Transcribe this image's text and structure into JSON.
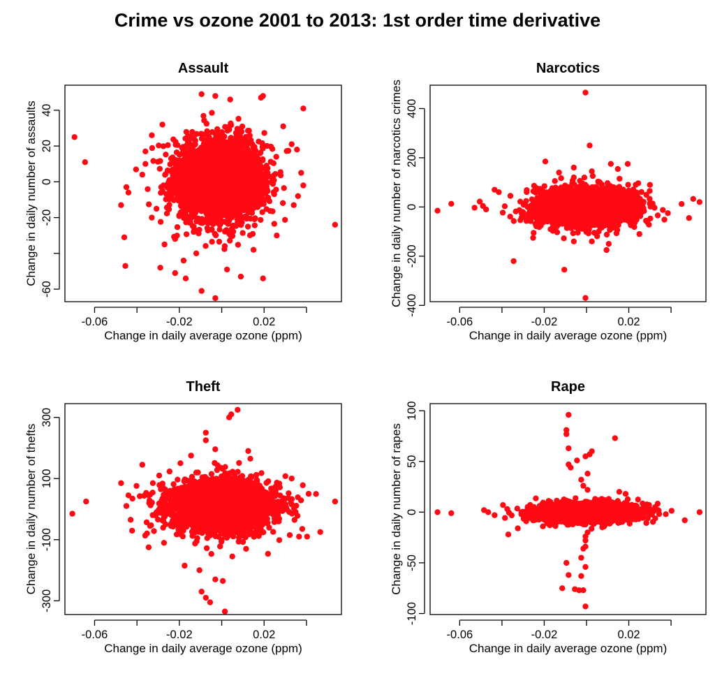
{
  "figure": {
    "title": "Crime vs ozone 2001 to 2013: 1st order time derivative",
    "point_color": "#ff0a14"
  },
  "chart_data": [
    {
      "type": "scatter",
      "title": "Assault",
      "xlabel": "Change in daily average ozone (ppm)",
      "ylabel": "Change in daily number of assaults",
      "xlim": [
        -0.074,
        0.0565
      ],
      "ylim": [
        -67,
        54
      ],
      "xticks": [
        -0.06,
        -0.04,
        -0.02,
        0,
        0.02,
        0.04
      ],
      "xtick_labels": [
        "-0.06",
        "",
        "-0.02",
        "",
        "0.02",
        ""
      ],
      "yticks": [
        -60,
        -40,
        -20,
        0,
        20,
        40
      ],
      "ytick_labels": [
        "-60",
        "",
        "-20",
        "0",
        "20",
        "40"
      ],
      "cloud": {
        "cx": -0.0015,
        "cy": 1,
        "sx": 0.0105,
        "sy": 11.5,
        "n": 2600
      },
      "points": [
        [
          -0.0695,
          25
        ],
        [
          -0.0645,
          11
        ],
        [
          -0.0475,
          -13
        ],
        [
          -0.046,
          -31
        ],
        [
          -0.0455,
          -47
        ],
        [
          -0.044,
          -6
        ],
        [
          -0.045,
          -3
        ],
        [
          -0.029,
          -48
        ],
        [
          -0.022,
          -51
        ],
        [
          -0.017,
          -54
        ],
        [
          -0.0095,
          -61
        ],
        [
          -0.003,
          -65
        ],
        [
          0.009,
          -53
        ],
        [
          0.0195,
          -54
        ],
        [
          0.0535,
          -24
        ],
        [
          0.0385,
          -2
        ],
        [
          0.0385,
          41
        ],
        [
          0.0195,
          48
        ],
        [
          0.0185,
          47
        ],
        [
          -0.0095,
          49
        ],
        [
          -0.003,
          48
        ],
        [
          0.004,
          46
        ],
        [
          -0.028,
          32
        ],
        [
          -0.033,
          26
        ],
        [
          -0.036,
          17
        ],
        [
          0.033,
          21
        ],
        [
          0.0355,
          18
        ],
        [
          -0.0375,
          4
        ],
        [
          0.0375,
          5
        ],
        [
          0.034,
          -13
        ],
        [
          -0.033,
          -20
        ],
        [
          -0.012,
          -40
        ],
        [
          0.0025,
          -49
        ],
        [
          -0.018,
          -44
        ],
        [
          0.015,
          -38
        ],
        [
          -0.027,
          -35
        ],
        [
          0.029,
          31
        ],
        [
          0.026,
          -30
        ],
        [
          -0.036,
          10
        ],
        [
          0.036,
          -8
        ]
      ]
    },
    {
      "type": "scatter",
      "title": "Narcotics",
      "xlabel": "Change in daily average ozone (ppm)",
      "ylabel": "Change in daily number of narcotics crimes",
      "xlim": [
        -0.074,
        0.0565
      ],
      "ylim": [
        -385,
        495
      ],
      "xticks": [
        -0.06,
        -0.04,
        -0.02,
        0,
        0.02,
        0.04
      ],
      "xtick_labels": [
        "-0.06",
        "",
        "-0.02",
        "",
        "0.02",
        ""
      ],
      "yticks": [
        -400,
        -200,
        0,
        200,
        400
      ],
      "ytick_labels": [
        "-400",
        "-200",
        "0",
        "200",
        "400"
      ],
      "cloud": {
        "cx": 0.0,
        "cy": 0,
        "sx": 0.0115,
        "sy": 37,
        "n": 2600
      },
      "points": [
        [
          -0.0705,
          -15
        ],
        [
          -0.064,
          13
        ],
        [
          -0.053,
          -3
        ],
        [
          -0.0505,
          22
        ],
        [
          -0.049,
          4
        ],
        [
          -0.0475,
          -10
        ],
        [
          -0.0435,
          70
        ],
        [
          -0.0415,
          60
        ],
        [
          -0.0345,
          -220
        ],
        [
          -0.0105,
          -255
        ],
        [
          -0.0005,
          465
        ],
        [
          -0.0005,
          -370
        ],
        [
          0.0015,
          250
        ],
        [
          -0.0195,
          185
        ],
        [
          -0.006,
          120
        ],
        [
          0.0025,
          145
        ],
        [
          0.0115,
          175
        ],
        [
          0.0195,
          175
        ],
        [
          -0.006,
          160
        ],
        [
          0.0025,
          -140
        ],
        [
          -0.006,
          -140
        ],
        [
          0.0095,
          -175
        ],
        [
          0.0535,
          20
        ],
        [
          0.0505,
          33
        ],
        [
          0.0485,
          -45
        ],
        [
          0.0385,
          -25
        ],
        [
          0.045,
          12
        ],
        [
          -0.036,
          45
        ],
        [
          0.03,
          90
        ],
        [
          0.025,
          -110
        ],
        [
          -0.025,
          -105
        ],
        [
          -0.013,
          140
        ],
        [
          0.0105,
          -150
        ]
      ]
    },
    {
      "type": "scatter",
      "title": "Theft",
      "xlabel": "Change in daily average ozone (ppm)",
      "ylabel": "Change in daily number of thefts",
      "xlim": [
        -0.074,
        0.0565
      ],
      "ylim": [
        -345,
        345
      ],
      "xticks": [
        -0.06,
        -0.04,
        -0.02,
        0,
        0.02,
        0.04
      ],
      "xtick_labels": [
        "-0.06",
        "",
        "-0.02",
        "",
        "0.02",
        ""
      ],
      "yticks": [
        -300,
        -100,
        100,
        300
      ],
      "ytick_labels": [
        "-300",
        "-100",
        "100",
        "300"
      ],
      "cloud": {
        "cx": 0.0,
        "cy": 10,
        "sx": 0.0125,
        "sy": 42,
        "n": 2600
      },
      "points": [
        [
          -0.0705,
          -15
        ],
        [
          -0.064,
          25
        ],
        [
          -0.0475,
          85
        ],
        [
          -0.045,
          10
        ],
        [
          -0.044,
          45
        ],
        [
          -0.043,
          -35
        ],
        [
          -0.0375,
          145
        ],
        [
          -0.0345,
          -125
        ],
        [
          -0.0325,
          85
        ],
        [
          -0.0195,
          150
        ],
        [
          -0.0145,
          175
        ],
        [
          -0.0075,
          250
        ],
        [
          -0.0075,
          225
        ],
        [
          0.0035,
          300
        ],
        [
          0.0045,
          310
        ],
        [
          0.0075,
          325
        ],
        [
          0.0125,
          190
        ],
        [
          0.0135,
          165
        ],
        [
          -0.0175,
          -185
        ],
        [
          -0.0095,
          -270
        ],
        [
          -0.0075,
          -290
        ],
        [
          -0.0055,
          -305
        ],
        [
          -0.003,
          -230
        ],
        [
          0.0005,
          -235
        ],
        [
          0.0015,
          -335
        ],
        [
          -0.0105,
          -200
        ],
        [
          0.005,
          -155
        ],
        [
          0.0115,
          -130
        ],
        [
          0.0535,
          25
        ],
        [
          0.0465,
          -75
        ],
        [
          0.038,
          -65
        ],
        [
          0.0365,
          -90
        ],
        [
          0.041,
          50
        ],
        [
          0.033,
          100
        ],
        [
          -0.0295,
          110
        ]
      ]
    },
    {
      "type": "scatter",
      "title": "Rape",
      "xlabel": "Change in daily average ozone (ppm)",
      "ylabel": "Change in daily number of rapes",
      "xlim": [
        -0.074,
        0.0565
      ],
      "ylim": [
        -101,
        107
      ],
      "xticks": [
        -0.06,
        -0.04,
        -0.02,
        0,
        0.02,
        0.04
      ],
      "xtick_labels": [
        "-0.06",
        "",
        "-0.02",
        "",
        "0.02",
        ""
      ],
      "yticks": [
        -100,
        -50,
        0,
        50,
        100
      ],
      "ytick_labels": [
        "-100",
        "-50",
        "0",
        "50",
        "100"
      ],
      "cloud": {
        "cx": 0.0,
        "cy": 0,
        "sx": 0.0115,
        "sy": 4.5,
        "n": 2600
      },
      "points": [
        [
          -0.0705,
          0
        ],
        [
          -0.064,
          -1
        ],
        [
          -0.0485,
          2
        ],
        [
          -0.0465,
          0
        ],
        [
          -0.0435,
          -3
        ],
        [
          -0.0395,
          7
        ],
        [
          -0.0375,
          3
        ],
        [
          -0.037,
          -22
        ],
        [
          -0.0325,
          -16
        ],
        [
          -0.0085,
          96
        ],
        [
          -0.0095,
          81
        ],
        [
          -0.0095,
          77
        ],
        [
          -0.0085,
          63
        ],
        [
          -0.0045,
          51
        ],
        [
          -0.0005,
          55
        ],
        [
          0.0015,
          57
        ],
        [
          0.0025,
          60
        ],
        [
          0.0135,
          73
        ],
        [
          -0.0085,
          47
        ],
        [
          -0.0075,
          44
        ],
        [
          0.0005,
          38
        ],
        [
          -0.0025,
          32
        ],
        [
          -0.0015,
          26
        ],
        [
          0.0005,
          22
        ],
        [
          -0.0005,
          -24
        ],
        [
          -0.0005,
          -28
        ],
        [
          -0.0005,
          -34
        ],
        [
          -0.0015,
          -36
        ],
        [
          -0.0025,
          -45
        ],
        [
          -0.0095,
          -50
        ],
        [
          -0.0005,
          -54
        ],
        [
          -0.0085,
          -62
        ],
        [
          -0.0025,
          -63
        ],
        [
          -0.0115,
          -75
        ],
        [
          -0.0055,
          -76
        ],
        [
          -0.0035,
          -77
        ],
        [
          -0.0015,
          -77
        ],
        [
          -0.0005,
          -93
        ],
        [
          0.0005,
          -20
        ],
        [
          -0.0015,
          -12
        ],
        [
          0.0085,
          12
        ],
        [
          0.0155,
          20
        ],
        [
          0.0185,
          18
        ],
        [
          0.0535,
          0
        ],
        [
          0.0465,
          -8
        ],
        [
          0.0375,
          -2
        ],
        [
          0.029,
          -6
        ],
        [
          0.0325,
          5
        ],
        [
          0.033,
          3
        ],
        [
          0.0155,
          -10
        ]
      ]
    }
  ]
}
